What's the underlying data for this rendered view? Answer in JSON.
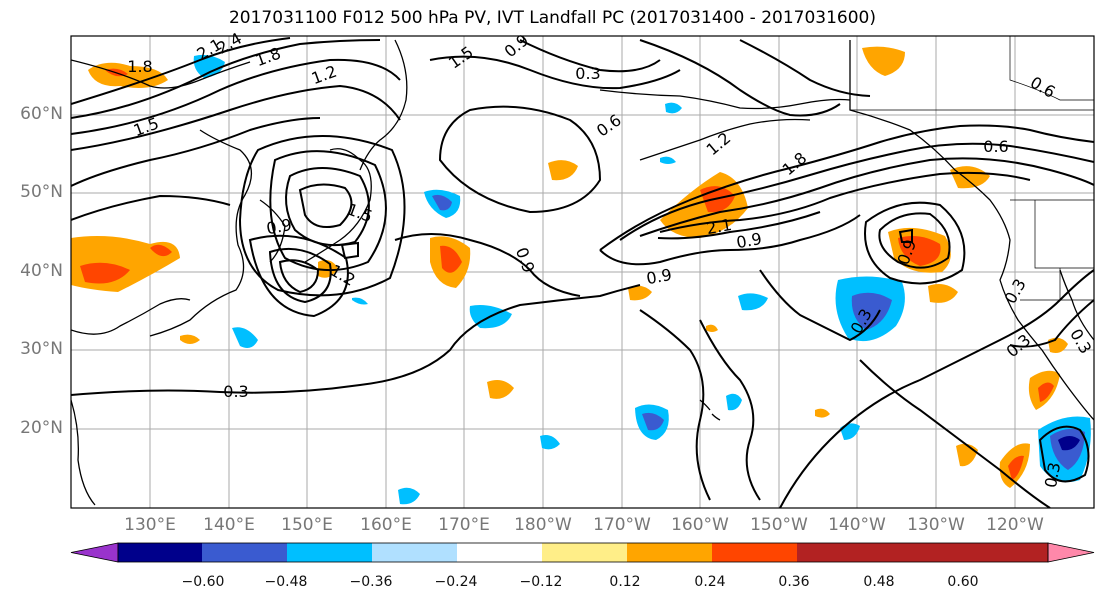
{
  "title": "2017031100 F012 500 hPa PV, IVT Landfall PC (2017031400 - 2017031600)",
  "map": {
    "lat_labels": [
      "60°N",
      "50°N",
      "40°N",
      "30°N",
      "20°N"
    ],
    "lon_labels": [
      "130°E",
      "140°E",
      "150°E",
      "160°E",
      "170°E",
      "180°W",
      "170°W",
      "160°W",
      "150°W",
      "140°W",
      "130°W",
      "120°W"
    ],
    "contour_labels": [
      "1.8",
      "2.4",
      "2.1",
      "1.8",
      "1.2",
      "1.5",
      "1.5",
      "0.9",
      "0.3",
      "0.6",
      "0.6",
      "0.6",
      "1.2",
      "1.8",
      "2.1",
      "0.9",
      "0.9",
      "0.9",
      "0.9",
      "0.9",
      "1.5",
      "1.2",
      "0.3",
      "0.3",
      "0.3",
      "0.3",
      "0.3",
      "0.3"
    ]
  },
  "colorbar": {
    "colors": [
      "#9933cc",
      "#00008b",
      "#3a5bd0",
      "#00bfff",
      "#b0e0ff",
      "#ffffff",
      "#ffee88",
      "#ffa500",
      "#ff4500",
      "#b22222",
      "#ff88aa"
    ],
    "labels": [
      "−0.60",
      "−0.48",
      "−0.36",
      "−0.24",
      "−0.12",
      "0.12",
      "0.24",
      "0.36",
      "0.48",
      "0.60"
    ]
  }
}
